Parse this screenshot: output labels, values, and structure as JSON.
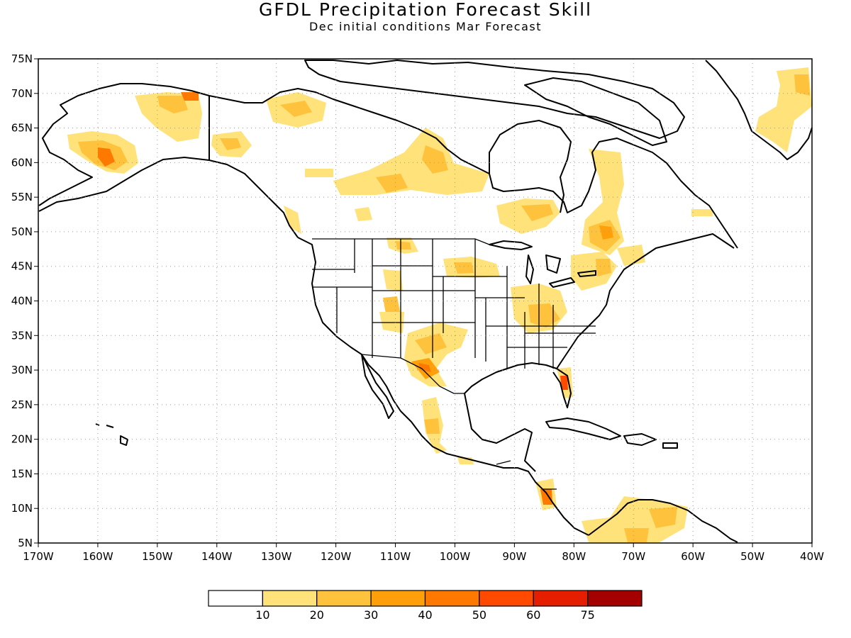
{
  "title": "GFDL Precipitation Forecast Skill",
  "subtitle": "Dec initial conditions  Mar Forecast",
  "latitudes": [
    "75N",
    "70N",
    "65N",
    "60N",
    "55N",
    "50N",
    "45N",
    "40N",
    "35N",
    "30N",
    "25N",
    "20N",
    "15N",
    "10N",
    "5N"
  ],
  "longitudes": [
    "170W",
    "160W",
    "150W",
    "140W",
    "130W",
    "120W",
    "110W",
    "100W",
    "90W",
    "80W",
    "70W",
    "60W",
    "50W",
    "40W"
  ],
  "colorbar": {
    "labels": [
      "10",
      "20",
      "30",
      "40",
      "50",
      "60",
      "75"
    ],
    "colors": [
      "#ffffff",
      "#ffe27a",
      "#ffc23c",
      "#ffa00a",
      "#ff7800",
      "#ff4a00",
      "#e61e00",
      "#a50000"
    ]
  },
  "colors": {
    "light": "#ffe27a",
    "light_orange": "#ffc23c",
    "orange": "#ffa00a",
    "dark_orange": "#ff7800",
    "red_orange": "#ff4a00"
  }
}
